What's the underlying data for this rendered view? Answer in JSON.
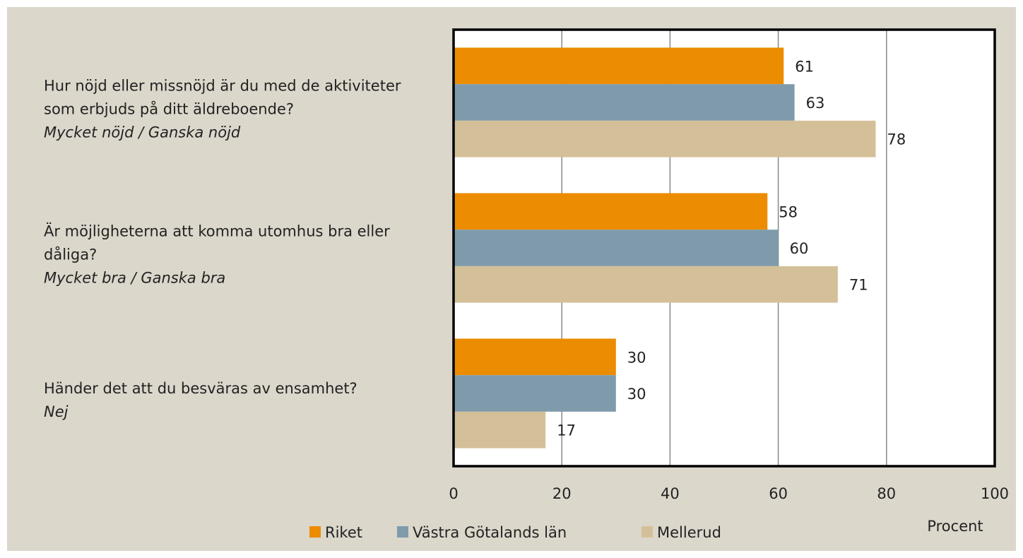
{
  "chart_data": {
    "type": "bar",
    "orientation": "horizontal",
    "categories": [
      {
        "question": "Hur nöjd eller missnöjd är du med de aktiviteter som erbjuds på ditt äldreboende?",
        "answer": "Mycket nöjd / Ganska nöjd"
      },
      {
        "question": "Är möjligheterna att komma utomhus bra eller dåliga?",
        "answer": "Mycket bra / Ganska bra"
      },
      {
        "question": "Händer det att du besväras av ensamhet?",
        "answer": "Nej"
      }
    ],
    "series": [
      {
        "name": "Riket",
        "color": "#ec8c00",
        "values": [
          61,
          58,
          30
        ]
      },
      {
        "name": "Västra Götalands län",
        "color": "#7f9bab",
        "values": [
          63,
          60,
          30
        ]
      },
      {
        "name": "Mellerud",
        "color": "#d4c098",
        "values": [
          78,
          71,
          17
        ]
      }
    ],
    "x_label": "Procent",
    "xlim": [
      0,
      100
    ],
    "xticks": [
      0,
      20,
      40,
      60,
      80,
      100
    ],
    "grid": true,
    "legend": "bottom"
  }
}
